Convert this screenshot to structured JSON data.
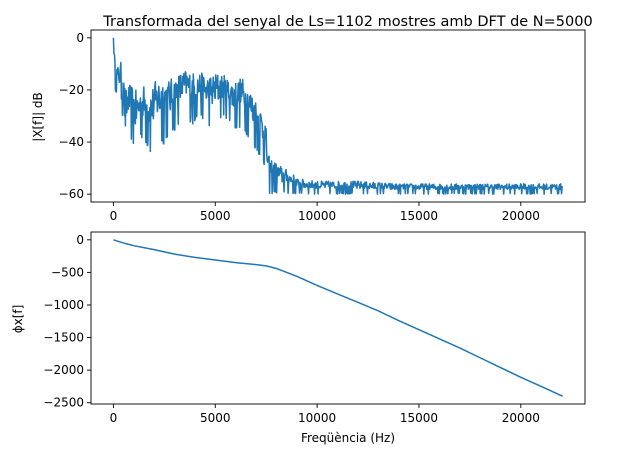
{
  "chart_data": [
    {
      "type": "line",
      "title": "Transformada del senyal de Ls=1102 mostres amb DFT de N=5000",
      "xlabel": "",
      "ylabel": "|X[f]| dB",
      "xlim": [
        -1100,
        23150
      ],
      "ylim": [
        -63,
        3
      ],
      "xticks": [
        0,
        5000,
        10000,
        15000,
        20000
      ],
      "xtick_labels": [
        "0",
        "5000",
        "10000",
        "15000",
        "20000"
      ],
      "yticks": [
        0,
        -20,
        -40,
        -60
      ],
      "ytick_labels": [
        "0",
        "−20",
        "−40",
        "−60"
      ],
      "grid": false,
      "series": [
        {
          "color": "#1f77b4",
          "x": [
            0,
            80,
            200,
            400,
            600,
            700,
            900,
            1100,
            1300,
            1500,
            1800,
            2100,
            2400,
            2700,
            3000,
            3300,
            3600,
            3900,
            4200,
            4500,
            4800,
            5100,
            5400,
            5700,
            6000,
            6300,
            6600,
            6900,
            7200,
            7450,
            7600,
            8000,
            8400,
            8800,
            9000,
            10000,
            12000,
            14000,
            16000,
            18000,
            20000,
            22050
          ],
          "values": [
            0,
            -10,
            -19,
            -13,
            -22,
            -28,
            -24,
            -26,
            -30,
            -28,
            -32,
            -27,
            -25,
            -26,
            -24,
            -22,
            -18,
            -20,
            -17,
            -19,
            -21,
            -18,
            -20,
            -22,
            -24,
            -22,
            -26,
            -30,
            -34,
            -40,
            -58,
            -55,
            -57,
            -56,
            -59,
            -59,
            -59,
            -59,
            -59,
            -59,
            -59,
            -59
          ],
          "noise_low": [
            0,
            -20,
            -22,
            -25,
            -50,
            -35,
            -40,
            -45,
            -38,
            -40,
            -45,
            -40,
            -42,
            -38,
            -36,
            -32,
            -30,
            -34,
            -30,
            -32,
            -35,
            -33,
            -30,
            -32,
            -36,
            -34,
            -38,
            -42,
            -46,
            -50,
            -60,
            -60,
            -60,
            -60,
            -60,
            -60,
            -60,
            -60,
            -60,
            -60,
            -60,
            -60
          ],
          "noise_high": [
            0,
            -9,
            -11,
            -9,
            -20,
            -18,
            -18,
            -20,
            -20,
            -18,
            -20,
            -16,
            -14,
            -16,
            -15,
            -13,
            -12,
            -13,
            -13,
            -14,
            -14,
            -13,
            -14,
            -16,
            -16,
            -15,
            -18,
            -22,
            -26,
            -30,
            -45,
            -48,
            -50,
            -52,
            -54,
            -55,
            -55,
            -56,
            -56,
            -56,
            -56,
            -56
          ]
        }
      ]
    },
    {
      "type": "line",
      "title": "",
      "xlabel": "Freqüència (Hz)",
      "ylabel": "ϕx[f]",
      "xlim": [
        -1100,
        23150
      ],
      "ylim": [
        -2520,
        120
      ],
      "xticks": [
        0,
        5000,
        10000,
        15000,
        20000
      ],
      "xtick_labels": [
        "0",
        "5000",
        "10000",
        "15000",
        "20000"
      ],
      "yticks": [
        0,
        -500,
        -1000,
        -1500,
        -2000,
        -2500
      ],
      "ytick_labels": [
        "0",
        "−500",
        "−1000",
        "−1500",
        "−2000",
        "−2500"
      ],
      "grid": false,
      "series": [
        {
          "color": "#1f77b4",
          "x": [
            0,
            500,
            1000,
            2000,
            3000,
            4000,
            5000,
            6000,
            7000,
            7500,
            8000,
            9000,
            10000,
            11000,
            12000,
            13000,
            14000,
            15000,
            16000,
            17000,
            18000,
            19000,
            20000,
            21000,
            22050
          ],
          "values": [
            0,
            -50,
            -90,
            -150,
            -220,
            -270,
            -310,
            -350,
            -380,
            -400,
            -440,
            -560,
            -700,
            -830,
            -960,
            -1090,
            -1240,
            -1380,
            -1520,
            -1660,
            -1810,
            -1960,
            -2110,
            -2250,
            -2400
          ]
        }
      ]
    }
  ]
}
